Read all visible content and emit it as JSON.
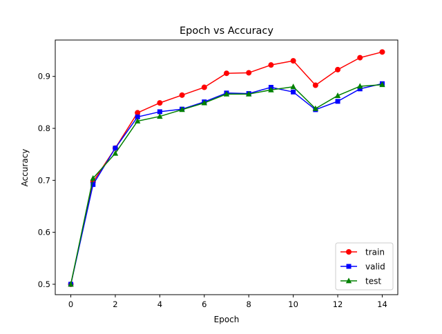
{
  "chart_data": {
    "type": "line",
    "title": "Epoch vs Accuracy",
    "xlabel": "Epoch",
    "ylabel": "Accuracy",
    "xlim": [
      -0.7,
      14.7
    ],
    "ylim": [
      0.48,
      0.97
    ],
    "xticks": [
      0,
      2,
      4,
      6,
      8,
      10,
      12,
      14
    ],
    "yticks": [
      0.5,
      0.6,
      0.7,
      0.8,
      0.9
    ],
    "xtick_labels": [
      "0",
      "2",
      "4",
      "6",
      "8",
      "10",
      "12",
      "14"
    ],
    "ytick_labels": [
      "0.5",
      "0.6",
      "0.7",
      "0.8",
      "0.9"
    ],
    "grid": false,
    "legend_position": "lower-right",
    "x": [
      0,
      1,
      2,
      3,
      4,
      5,
      6,
      7,
      8,
      9,
      10,
      11,
      12,
      13,
      14
    ],
    "series": [
      {
        "name": "train",
        "color": "#ff0000",
        "marker": "circle",
        "values": [
          0.5,
          0.697,
          0.762,
          0.83,
          0.849,
          0.864,
          0.879,
          0.906,
          0.907,
          0.922,
          0.93,
          0.883,
          0.913,
          0.936,
          0.947
        ]
      },
      {
        "name": "valid",
        "color": "#0000ff",
        "marker": "square",
        "values": [
          0.5,
          0.692,
          0.762,
          0.822,
          0.832,
          0.837,
          0.851,
          0.868,
          0.867,
          0.879,
          0.87,
          0.836,
          0.852,
          0.876,
          0.886
        ]
      },
      {
        "name": "test",
        "color": "#008000",
        "marker": "triangle",
        "values": [
          0.5,
          0.704,
          0.752,
          0.814,
          0.823,
          0.836,
          0.849,
          0.866,
          0.866,
          0.874,
          0.88,
          0.838,
          0.863,
          0.881,
          0.884
        ]
      }
    ]
  }
}
